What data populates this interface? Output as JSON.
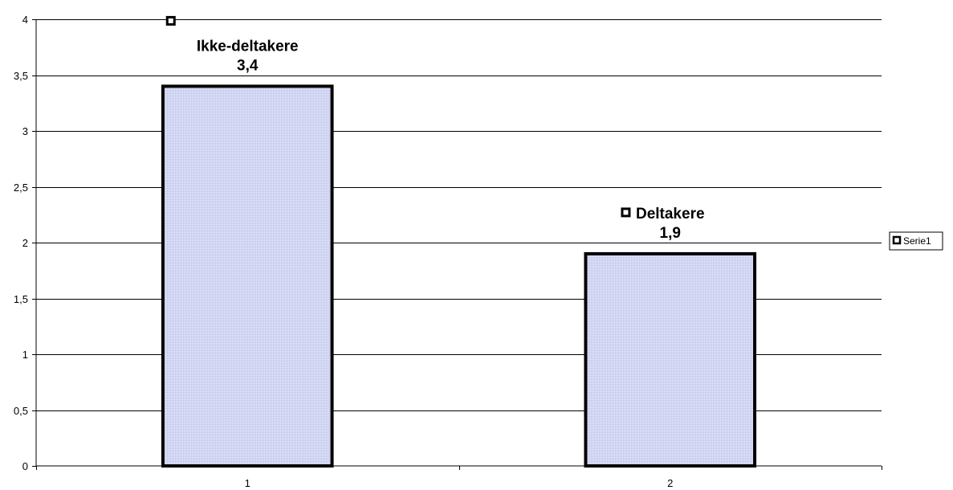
{
  "chart_data": {
    "type": "bar",
    "categories": [
      "1",
      "2"
    ],
    "series": [
      {
        "name": "Serie1",
        "values": [
          3.4,
          1.9
        ]
      }
    ],
    "bar_labels": [
      "Ikke-deltakere",
      "Deltakere"
    ],
    "value_labels": [
      "3,4",
      "1,9"
    ],
    "title": "",
    "xlabel": "",
    "ylabel": "",
    "ylim": [
      0,
      4
    ],
    "yticks": [
      0,
      0.5,
      1,
      1.5,
      2,
      2.5,
      3,
      3.5,
      4
    ],
    "ytick_labels": [
      "0",
      "0,5",
      "1",
      "1,5",
      "2",
      "2,5",
      "3",
      "3,5",
      "4"
    ],
    "grid": true,
    "legend": {
      "position": "right",
      "entries": [
        "Serie1"
      ]
    },
    "colors": {
      "bar_fill": "#d6d9f4",
      "bar_pattern": "#b9bfe8",
      "bar_stroke": "#000000",
      "grid": "#000000"
    }
  }
}
